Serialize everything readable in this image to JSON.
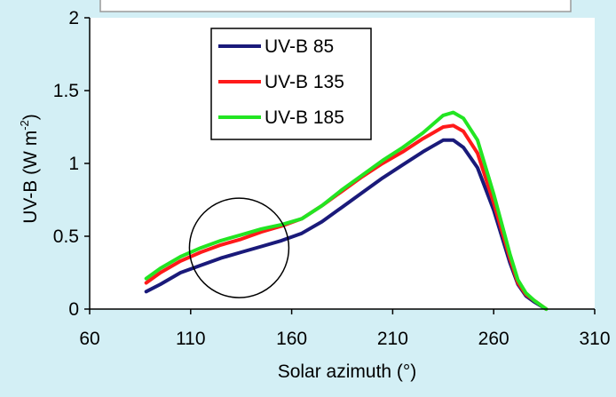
{
  "chart_data": {
    "type": "line",
    "xlabel": "Solar azimuth (°)",
    "ylabel_main": "UV-B (W m",
    "ylabel_sup": "-2",
    "ylabel_close": ")",
    "xlim": [
      60,
      310
    ],
    "ylim": [
      0,
      2
    ],
    "xticks": [
      60,
      110,
      160,
      210,
      260,
      310
    ],
    "yticks": [
      0,
      0.5,
      1,
      1.5,
      2
    ],
    "ytick_labels": [
      "0",
      "0.5",
      "1",
      "1.5",
      "2"
    ],
    "grid": false,
    "legend_position": "top-left inside",
    "annotation": {
      "shape": "circle",
      "center": [
        134,
        0.42
      ],
      "radius_x_units": 24.6
    },
    "series": [
      {
        "name": "UV-B 85",
        "color": "#1a1a7a",
        "x": [
          88,
          95,
          105,
          115,
          125,
          135,
          145,
          155,
          165,
          175,
          185,
          195,
          205,
          215,
          225,
          230,
          235,
          240,
          245,
          252,
          260,
          268,
          272,
          276,
          280,
          286
        ],
        "y": [
          0.12,
          0.17,
          0.25,
          0.3,
          0.35,
          0.39,
          0.43,
          0.47,
          0.52,
          0.6,
          0.7,
          0.8,
          0.9,
          0.99,
          1.08,
          1.12,
          1.16,
          1.16,
          1.11,
          0.97,
          0.68,
          0.32,
          0.17,
          0.09,
          0.05,
          0.0
        ]
      },
      {
        "name": "UV-B 135",
        "color": "#ff1a1a",
        "x": [
          88,
          95,
          105,
          115,
          125,
          135,
          145,
          155,
          165,
          175,
          185,
          195,
          205,
          215,
          225,
          230,
          235,
          240,
          245,
          252,
          260,
          268,
          272,
          276,
          280,
          286
        ],
        "y": [
          0.18,
          0.25,
          0.33,
          0.39,
          0.44,
          0.48,
          0.53,
          0.57,
          0.62,
          0.71,
          0.81,
          0.91,
          1.0,
          1.08,
          1.17,
          1.21,
          1.25,
          1.26,
          1.22,
          1.07,
          0.73,
          0.35,
          0.18,
          0.1,
          0.06,
          0.0
        ]
      },
      {
        "name": "UV-B 185",
        "color": "#22e522",
        "x": [
          88,
          95,
          105,
          115,
          125,
          135,
          145,
          155,
          165,
          175,
          185,
          195,
          205,
          215,
          225,
          230,
          235,
          240,
          245,
          252,
          260,
          268,
          272,
          276,
          280,
          286
        ],
        "y": [
          0.21,
          0.28,
          0.36,
          0.42,
          0.47,
          0.51,
          0.55,
          0.58,
          0.62,
          0.71,
          0.82,
          0.92,
          1.02,
          1.11,
          1.21,
          1.27,
          1.33,
          1.35,
          1.31,
          1.16,
          0.79,
          0.38,
          0.2,
          0.11,
          0.06,
          0.0
        ]
      }
    ]
  }
}
